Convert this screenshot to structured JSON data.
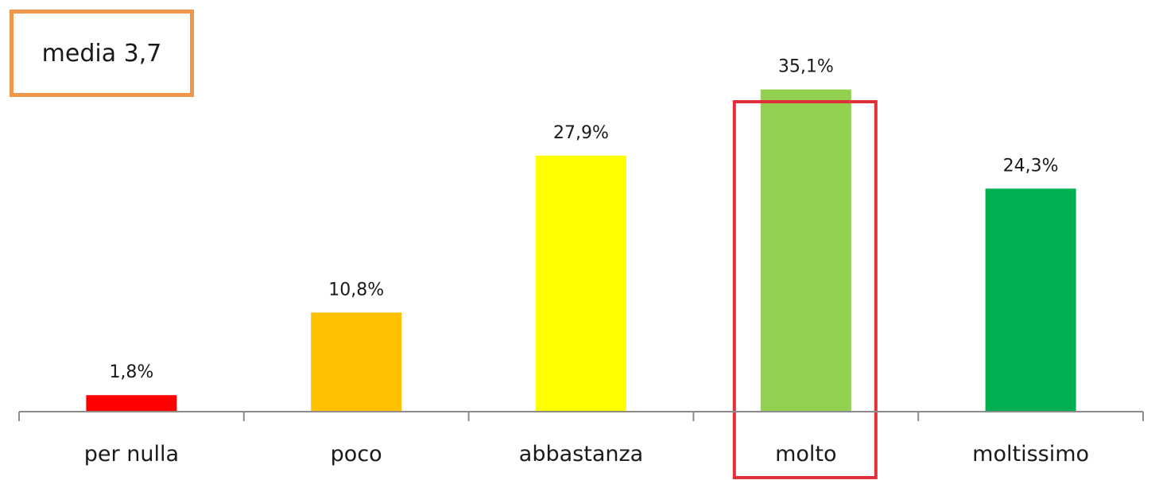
{
  "summary": {
    "mean_label": "media 3,7"
  },
  "chart_data": {
    "type": "bar",
    "categories": [
      "per nulla",
      "poco",
      "abbastanza",
      "molto",
      "moltissimo"
    ],
    "values": [
      1.8,
      10.8,
      27.9,
      35.1,
      24.3
    ],
    "value_labels": [
      "1,8%",
      "10,8%",
      "27,9%",
      "35,1%",
      "24,3%"
    ],
    "colors": [
      "#ff0000",
      "#ffc000",
      "#ffff00",
      "#92d050",
      "#00b050"
    ],
    "highlighted_category": "molto",
    "highlight_color": "#e0313a",
    "unit": "%",
    "ylim": [
      0,
      40
    ],
    "grid": false,
    "legend": "none",
    "title": "",
    "xlabel": "",
    "ylabel": ""
  }
}
